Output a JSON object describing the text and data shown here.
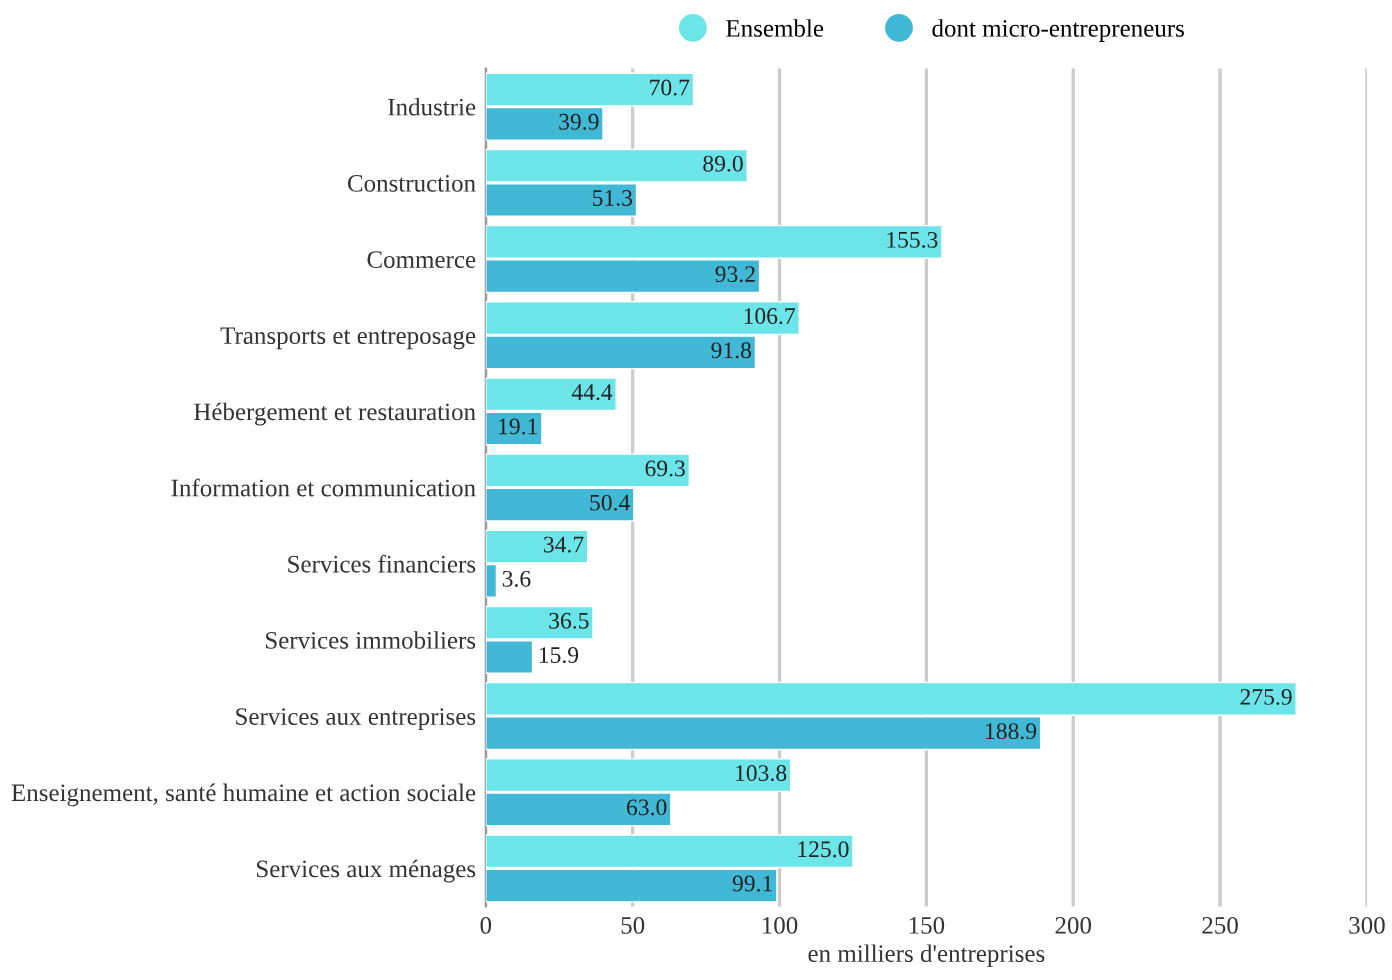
{
  "chart_data": {
    "type": "bar",
    "orientation": "horizontal",
    "xlabel": "en milliers d'entreprises",
    "categories": [
      "Industrie",
      "Construction",
      "Commerce",
      "Transports et entreposage",
      "Hébergement et restauration",
      "Information et communication",
      "Services financiers",
      "Services immobiliers",
      "Services aux entreprises",
      "Enseignement, santé humaine et action sociale",
      "Services aux ménages"
    ],
    "series": [
      {
        "name": "Ensemble",
        "color": "#6ce5e8",
        "values": [
          70.7,
          89.0,
          155.3,
          106.7,
          44.4,
          69.3,
          34.7,
          36.5,
          275.9,
          103.8,
          125.0
        ],
        "value_labels": [
          "70.7",
          "89.0",
          "155.3",
          "106.7",
          "44.4",
          "69.3",
          "34.7",
          "36.5",
          "275.9",
          "103.8",
          "125.0"
        ]
      },
      {
        "name": "dont micro-entrepreneurs",
        "color": "#41b8d5",
        "values": [
          39.9,
          51.3,
          93.2,
          91.8,
          19.1,
          50.4,
          3.6,
          15.9,
          188.9,
          63.0,
          99.1
        ],
        "value_labels": [
          "39.9",
          "51.3",
          "93.2",
          "91.8",
          "19.1",
          "50.4",
          "3.6",
          "15.9",
          "188.9",
          "63.0",
          "99.1"
        ]
      }
    ],
    "xlim": [
      0,
      300
    ],
    "xticks": [
      0,
      50,
      100,
      150,
      200,
      250,
      300
    ],
    "grid": "x",
    "legend": "top"
  }
}
